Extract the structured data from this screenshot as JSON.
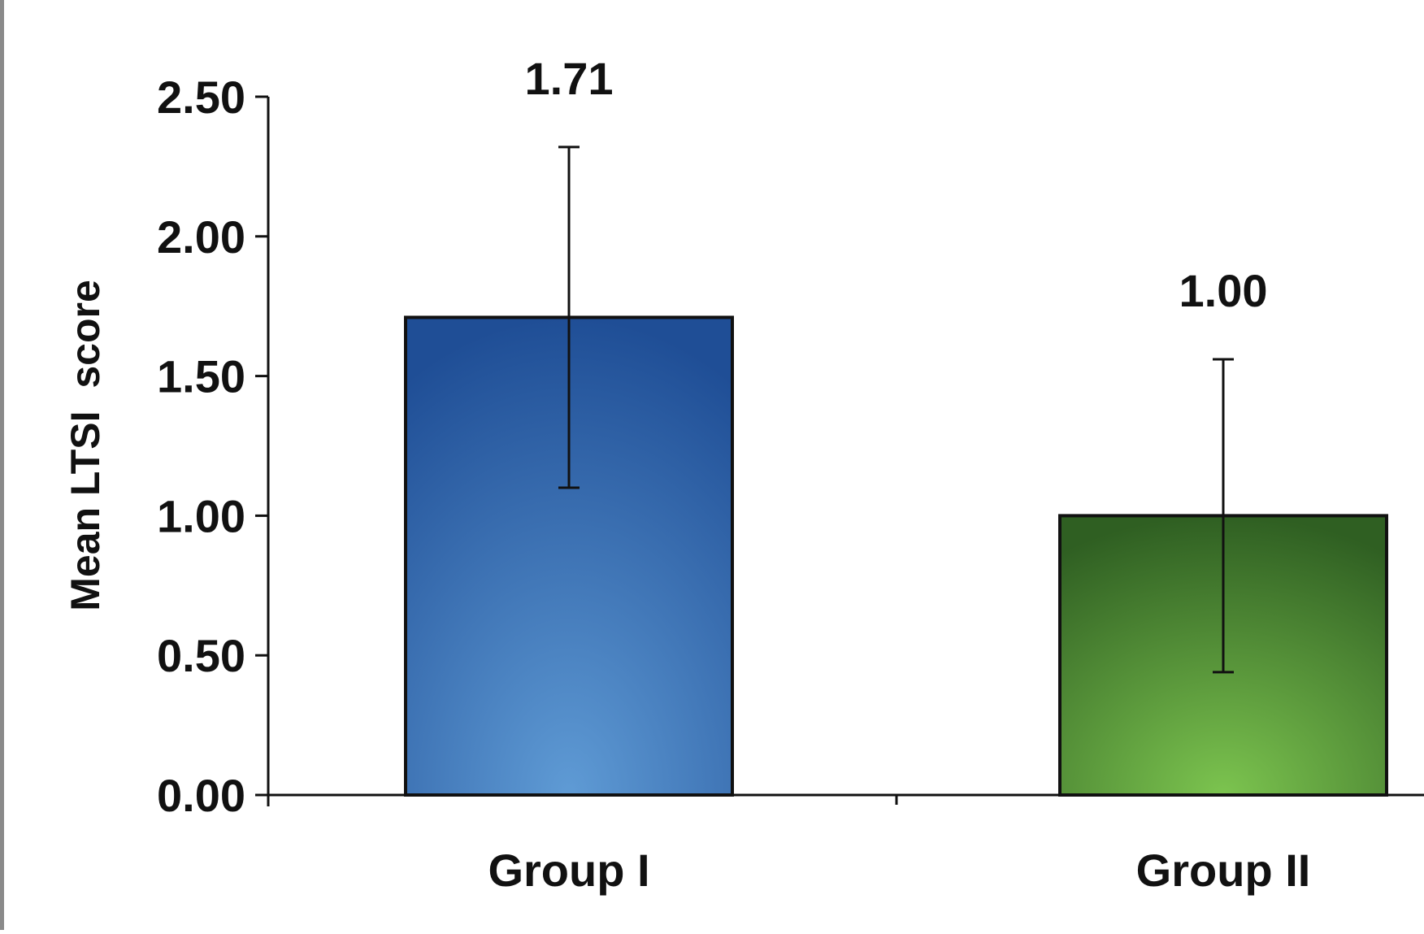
{
  "chart_data": {
    "type": "bar",
    "categories": [
      "Group I",
      "Group II"
    ],
    "values": [
      1.71,
      1.0
    ],
    "error_upper": [
      2.32,
      1.56
    ],
    "error_lower": [
      1.1,
      0.44
    ],
    "data_labels": [
      "1.71",
      "1.00"
    ],
    "ylabel": "Mean LTSI  score",
    "xlabel": "",
    "ylim": [
      0,
      2.5
    ],
    "yticks": [
      "0.00",
      "0.50",
      "1.00",
      "1.50",
      "2.00",
      "2.50"
    ],
    "grid": false,
    "legend": "none",
    "colors": {
      "bar_1_top": "#1f4e96",
      "bar_1_center": "#5f9bd5",
      "bar_2_top": "#2f5f22",
      "bar_2_center": "#7cc44f",
      "axis": "#111111"
    }
  }
}
